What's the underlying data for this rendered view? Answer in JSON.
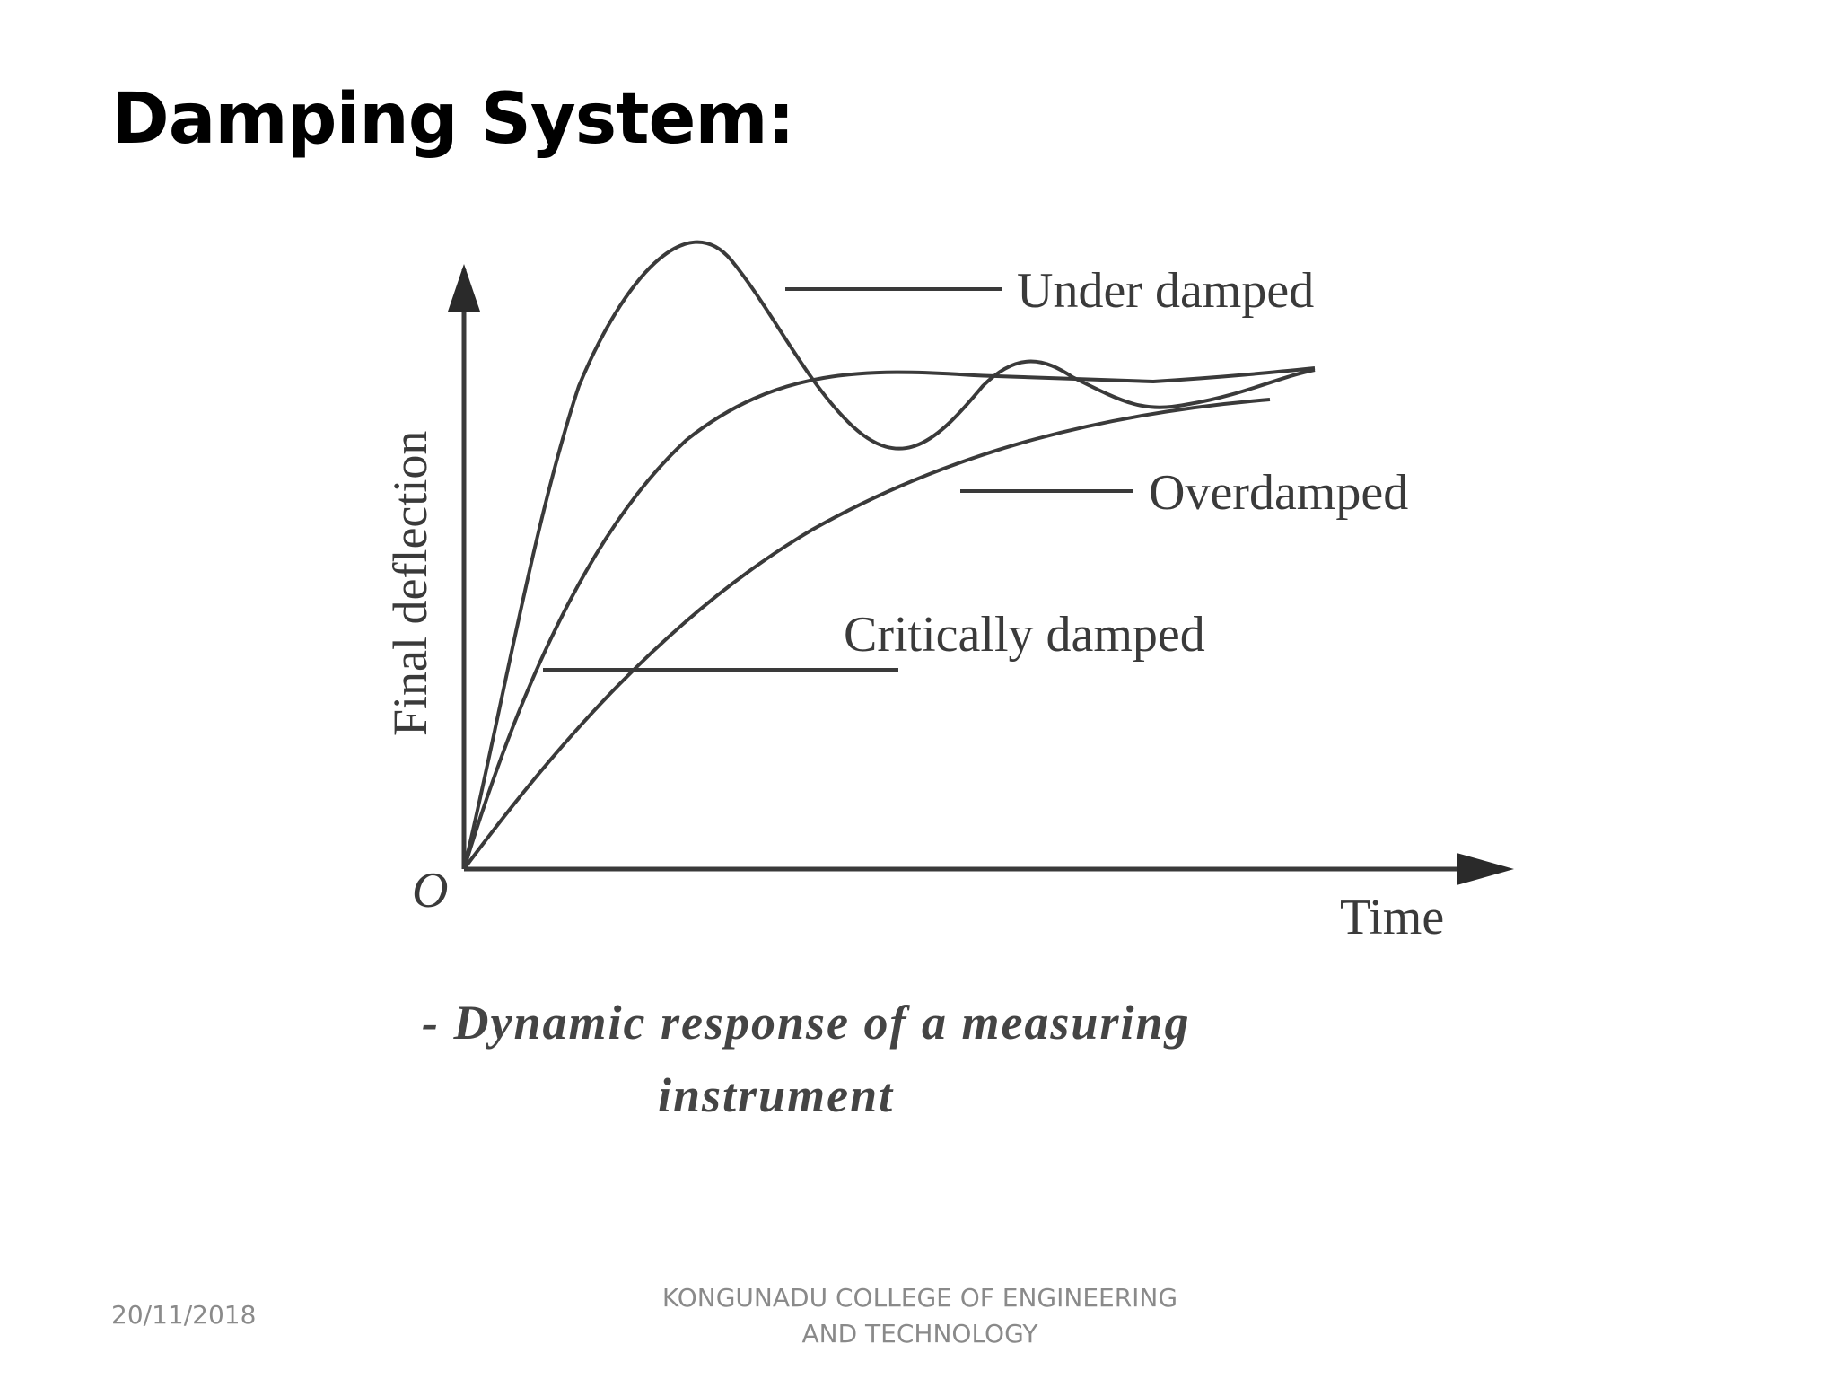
{
  "slide": {
    "title": "Damping System:"
  },
  "diagram": {
    "y_axis_label": "Final deflection",
    "x_axis_label": "Time",
    "origin_label": "O",
    "curves": [
      {
        "id": "under",
        "label": "Under damped"
      },
      {
        "id": "critical",
        "label": "Critically damped"
      },
      {
        "id": "over",
        "label": "Overdamped"
      }
    ],
    "caption_line1": "-  Dynamic response of a measuring",
    "caption_line2": "instrument",
    "stroke_color": "#3a3a3a"
  },
  "footer": {
    "date": "20/11/2018",
    "org_line1": "KONGUNADU COLLEGE OF ENGINEERING",
    "org_line2": "AND TECHNOLOGY"
  }
}
